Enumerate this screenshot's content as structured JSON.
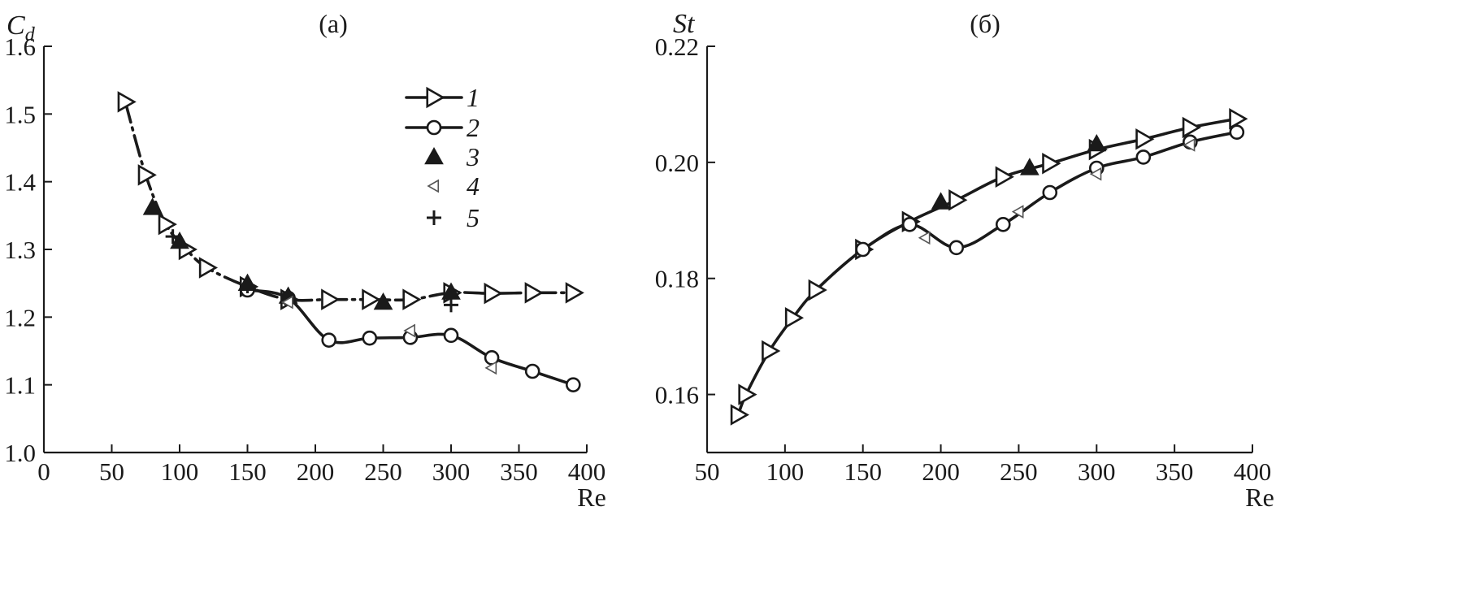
{
  "chart_data": [
    {
      "type": "line",
      "panel_label": "(a)",
      "ylabel_main": "C",
      "ylabel_sub": "d",
      "xlabel": "Re",
      "xlim": [
        0,
        400
      ],
      "ylim": [
        1.0,
        1.6
      ],
      "xticks": [
        "0",
        "50",
        "100",
        "150",
        "200",
        "250",
        "300",
        "350",
        "400"
      ],
      "yticks": [
        "1.0",
        "1.1",
        "1.2",
        "1.3",
        "1.4",
        "1.5",
        "1.6"
      ],
      "grid": false,
      "legend_position": "upper-right",
      "series": [
        {
          "name": "1",
          "marker": "triangle-right-open",
          "line": "dash-dot",
          "x": [
            60,
            75,
            90,
            105,
            120,
            150,
            180,
            210,
            240,
            270,
            300,
            330,
            360,
            390
          ],
          "y": [
            1.518,
            1.41,
            1.337,
            1.3,
            1.273,
            1.245,
            1.226,
            1.226,
            1.226,
            1.226,
            1.236,
            1.235,
            1.236,
            1.236
          ]
        },
        {
          "name": "2",
          "marker": "circle-open",
          "line": "solid",
          "x": [
            150,
            180,
            210,
            240,
            270,
            300,
            330,
            360,
            390
          ],
          "y": [
            1.24,
            1.228,
            1.166,
            1.169,
            1.17,
            1.173,
            1.14,
            1.12,
            1.1
          ]
        },
        {
          "name": "3",
          "marker": "triangle-up-filled",
          "line": "none",
          "x": [
            80,
            100,
            150,
            180,
            250,
            300
          ],
          "y": [
            1.362,
            1.312,
            1.25,
            1.231,
            1.222,
            1.237
          ]
        },
        {
          "name": "4",
          "marker": "triangle-left-open-small",
          "line": "none",
          "x": [
            180,
            270,
            330
          ],
          "y": [
            1.222,
            1.18,
            1.125
          ]
        },
        {
          "name": "5",
          "marker": "plus",
          "line": "none",
          "x": [
            95,
            150,
            300
          ],
          "y": [
            1.319,
            1.246,
            1.218
          ]
        }
      ]
    },
    {
      "type": "line",
      "panel_label": "(б)",
      "ylabel": "St",
      "xlabel": "Re",
      "xlim": [
        50,
        400
      ],
      "ylim": [
        0.15,
        0.22
      ],
      "xticks": [
        "50",
        "100",
        "150",
        "200",
        "250",
        "300",
        "350",
        "400"
      ],
      "yticks": [
        "0.16",
        "0.18",
        "0.20",
        "0.22"
      ],
      "grid": false,
      "series": [
        {
          "name": "1",
          "marker": "triangle-right-open",
          "line": "solid",
          "x": [
            70,
            75,
            90,
            105,
            120,
            150,
            180,
            210,
            240,
            270,
            300,
            330,
            360,
            390
          ],
          "y": [
            0.1565,
            0.16,
            0.1675,
            0.1732,
            0.178,
            0.185,
            0.1898,
            0.1935,
            0.1975,
            0.1998,
            0.2022,
            0.204,
            0.206,
            0.2075
          ]
        },
        {
          "name": "2",
          "marker": "circle-open",
          "line": "solid",
          "x": [
            150,
            180,
            210,
            240,
            270,
            300,
            330,
            360,
            390
          ],
          "y": [
            0.185,
            0.1893,
            0.1853,
            0.1893,
            0.1948,
            0.199,
            0.2009,
            0.2035,
            0.2052
          ]
        },
        {
          "name": "3",
          "marker": "triangle-up-filled",
          "line": "none",
          "x": [
            200,
            257,
            300
          ],
          "y": [
            0.1932,
            0.1991,
            0.2032
          ]
        },
        {
          "name": "4",
          "marker": "triangle-left-open-small",
          "line": "none",
          "x": [
            190,
            250,
            300,
            360
          ],
          "y": [
            0.187,
            0.1915,
            0.198,
            0.203
          ]
        }
      ]
    }
  ]
}
